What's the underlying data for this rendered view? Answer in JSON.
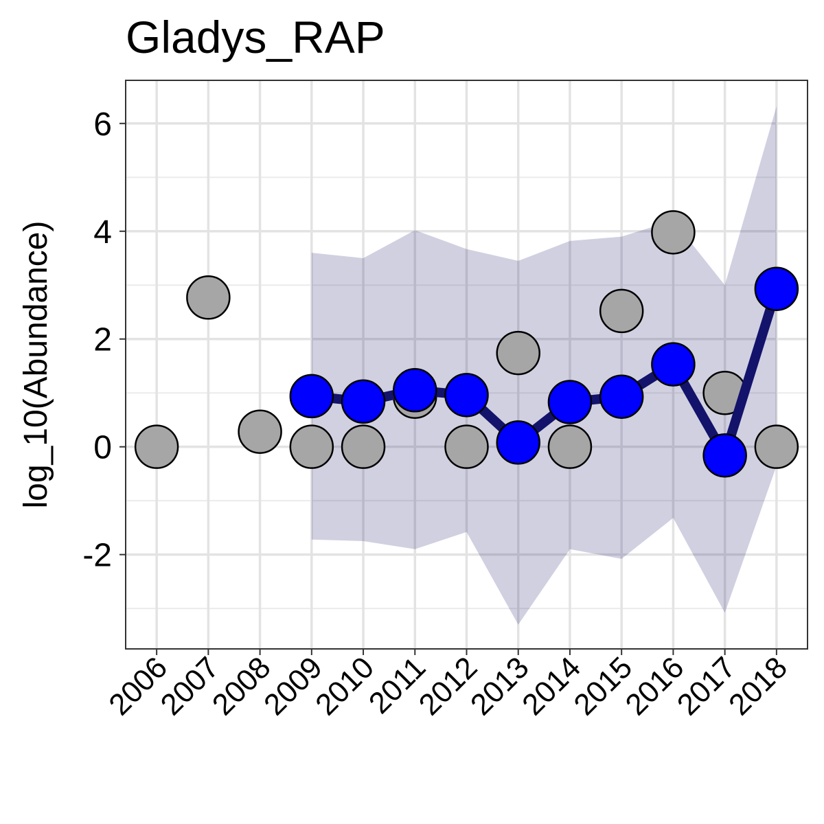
{
  "chart_data": {
    "type": "line",
    "title": "Gladys_RAP",
    "xlabel": "",
    "ylabel": "log_10(Abundance)",
    "x": [
      2006,
      2007,
      2008,
      2009,
      2010,
      2011,
      2012,
      2013,
      2014,
      2015,
      2016,
      2017,
      2018
    ],
    "x_tick_labels": [
      "2006",
      "2007",
      "2008",
      "2009",
      "2010",
      "2011",
      "2012",
      "2013",
      "2014",
      "2015",
      "2016",
      "2017",
      "2018"
    ],
    "y_ticks": [
      -2,
      0,
      2,
      4,
      6
    ],
    "y_tick_labels": [
      "-2",
      "0",
      "2",
      "4",
      "6"
    ],
    "xlim": [
      2005.4,
      2018.6
    ],
    "ylim": [
      -3.75,
      6.8
    ],
    "grid": true,
    "legend": "none",
    "series": [
      {
        "kind": "ribbon",
        "x": [
          2009,
          2010,
          2011,
          2012,
          2013,
          2014,
          2015,
          2016,
          2017,
          2018
        ],
        "lower": [
          -1.72,
          -1.75,
          -1.9,
          -1.58,
          -3.3,
          -1.9,
          -2.08,
          -1.32,
          -3.08,
          -0.35
        ],
        "upper": [
          3.6,
          3.5,
          4.02,
          3.67,
          3.45,
          3.82,
          3.9,
          4.2,
          3.0,
          6.32
        ],
        "color": "#13136b"
      },
      {
        "kind": "line",
        "x": [
          2009,
          2010,
          2011,
          2012,
          2013,
          2014,
          2015,
          2016,
          2017,
          2018
        ],
        "values": [
          0.94,
          0.84,
          1.05,
          0.96,
          0.08,
          0.83,
          0.93,
          1.53,
          -0.16,
          2.93
        ],
        "line_color": "#13136b",
        "point_color": "#0000ff"
      },
      {
        "kind": "points",
        "x": [
          2006,
          2007,
          2008,
          2009,
          2010,
          2011,
          2012,
          2013,
          2014,
          2015,
          2016,
          2017,
          2018
        ],
        "values": [
          0,
          2.77,
          0.28,
          0,
          0,
          0.93,
          0,
          1.74,
          0,
          2.52,
          3.98,
          1.0,
          0
        ],
        "point_color": "#a6a6a6"
      }
    ]
  }
}
